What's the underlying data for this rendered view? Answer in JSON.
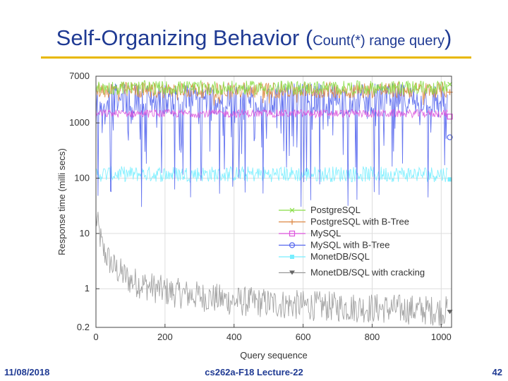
{
  "slide": {
    "title_main": "Self-Organizing Behavior (",
    "title_sub": "Count(*) range query",
    "title_close": ")",
    "footer_date": "11/08/2018",
    "footer_course": "cs262a-F18 Lecture-22",
    "footer_page": "42"
  },
  "colors": {
    "title": "#1f3a93",
    "rule": "#e8b800",
    "postgres": "#88dd44",
    "postgres_btree": "#dd8844",
    "mysql": "#dd55dd",
    "mysql_btree": "#5566ee",
    "monetdb": "#77eeff",
    "monetdb_cracking": "#999999"
  },
  "chart_data": {
    "type": "line",
    "title": "",
    "xlabel": "Query sequence",
    "ylabel": "Response time (milli secs)",
    "x_ticks": [
      0,
      200,
      400,
      600,
      800,
      1000
    ],
    "y_ticks": [
      0.2,
      1,
      10,
      100,
      1000,
      7000
    ],
    "y_scale": "log",
    "xlim": [
      0,
      1030
    ],
    "ylim": [
      0.2,
      7000
    ],
    "legend_position": "bottom-right",
    "series": [
      {
        "name": "PostgreSQL",
        "marker": "x",
        "color": "#88dd44",
        "typical": 4300,
        "low": 3200,
        "high": 5800,
        "spikes_down": 0,
        "spike_low": 2500
      },
      {
        "name": "PostgreSQL with B-Tree",
        "marker": "+",
        "color": "#dd8844",
        "typical": 4000,
        "low": 2800,
        "high": 5500,
        "spikes_down": 15,
        "spike_low": 2000
      },
      {
        "name": "MySQL",
        "marker": "square",
        "color": "#dd55dd",
        "typical": 1500,
        "low": 1250,
        "high": 1750,
        "spikes_down": 0,
        "spike_low": 1100
      },
      {
        "name": "MySQL with B-Tree",
        "marker": "circle",
        "color": "#5566ee",
        "typical": 3000,
        "low": 1400,
        "high": 5200,
        "spikes_down": 90,
        "spike_low": 30
      },
      {
        "name": "MonetDB/SQL",
        "marker": "filled-square",
        "color": "#77eeff",
        "typical": 120,
        "low": 85,
        "high": 165,
        "spikes_down": 0,
        "spike_low": 80
      },
      {
        "name": "MonetDB/SQL with cracking",
        "marker": "triangle-down",
        "color": "#999999",
        "start": 20,
        "end": 0.4,
        "decay_points": [
          [
            0,
            20
          ],
          [
            20,
            5
          ],
          [
            50,
            2.5
          ],
          [
            100,
            1.4
          ],
          [
            200,
            0.9
          ],
          [
            400,
            0.6
          ],
          [
            600,
            0.5
          ],
          [
            1000,
            0.4
          ]
        ]
      }
    ]
  }
}
